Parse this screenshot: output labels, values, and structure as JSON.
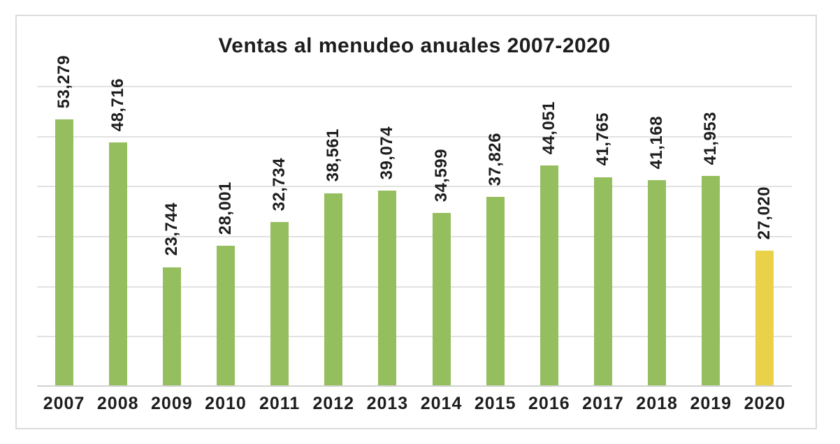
{
  "chart_data": {
    "type": "bar",
    "title": "Ventas al menudeo anuales 2007-2020",
    "categories": [
      "2007",
      "2008",
      "2009",
      "2010",
      "2011",
      "2012",
      "2013",
      "2014",
      "2015",
      "2016",
      "2017",
      "2018",
      "2019",
      "2020"
    ],
    "values": [
      53279,
      48716,
      23744,
      28001,
      32734,
      38561,
      39074,
      34599,
      37826,
      44051,
      41765,
      41168,
      41953,
      27020
    ],
    "value_labels": [
      "53,279",
      "48,716",
      "23,744",
      "28,001",
      "32,734",
      "38,561",
      "39,074",
      "34,599",
      "37,826",
      "44,051",
      "41,765",
      "41,168",
      "41,953",
      "27,020"
    ],
    "ylim": [
      0,
      60000
    ],
    "gridline_step": 10000,
    "grid": "horizontal-only",
    "legend_position": "none",
    "value_label_rotation_deg": 90,
    "bar_color": "#95BE5E",
    "highlight_color": "#E9D249",
    "highlight_index": 13
  },
  "style": {
    "text_color": "#1d1d1d",
    "gridline_color": "#e2e2e2",
    "axis_line_color": "#d2d2d2",
    "frame_border_color": "#dbdbdb",
    "background_color": "#ffffff"
  }
}
